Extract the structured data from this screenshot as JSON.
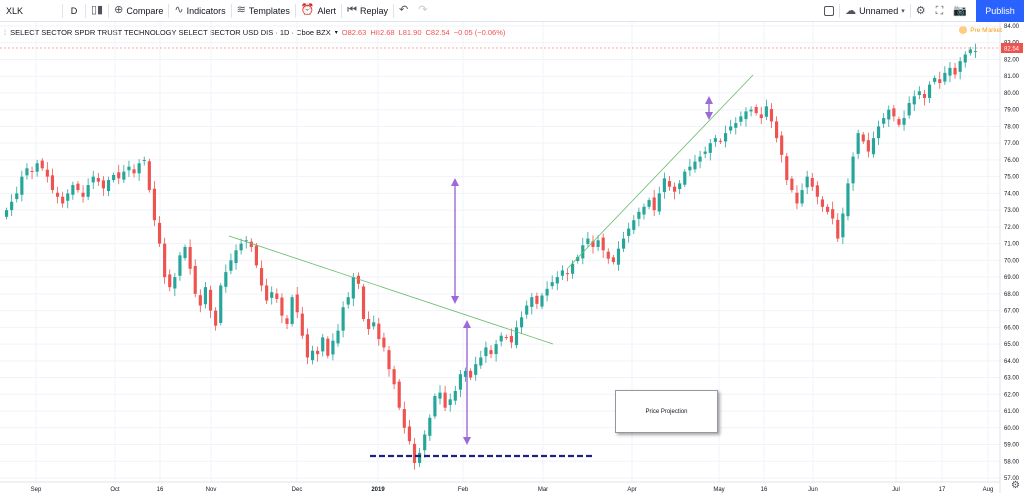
{
  "toolbar": {
    "symbol": "XLK",
    "interval": "D",
    "compare": "Compare",
    "indicators": "Indicators",
    "templates": "Templates",
    "alert": "Alert",
    "replay": "Replay",
    "layout_name": "Unnamed",
    "publish": "Publish"
  },
  "legend": {
    "title": "SELECT SECTOR SPDR TRUST TECHNOLOGY SELECT SECTOR USD DIS · 1D · Cboe BZX",
    "open": "O82.63",
    "high": "H82.68",
    "low": "L81.90",
    "close": "C82.54",
    "change": "−0.05 (−0.06%)"
  },
  "premarket": "Pre Market",
  "last_price_label": "82.54",
  "annotation": "Price Projection",
  "colors": {
    "up": "#26a69a",
    "down": "#ef5350",
    "trend": "#66bb6a",
    "arrow": "#9c6ad8",
    "support": "#1a237e"
  },
  "chart_data": {
    "type": "candlestick",
    "y_ticks": [
      "84.00",
      "83.00",
      "82.00",
      "81.00",
      "80.00",
      "79.00",
      "78.00",
      "77.00",
      "76.00",
      "75.00",
      "74.00",
      "73.00",
      "72.00",
      "71.00",
      "70.00",
      "69.00",
      "68.00",
      "67.00",
      "66.00",
      "65.00",
      "64.00",
      "63.00",
      "62.00",
      "61.00",
      "60.00",
      "59.00",
      "58.00",
      "57.00"
    ],
    "ylim": [
      56.5,
      84.5
    ],
    "x_ticks": [
      "Sep",
      "Oct",
      "16",
      "Nov",
      "Dec",
      "2019",
      "Feb",
      "Mar",
      "Apr",
      "May",
      "16",
      "Jun",
      "Jul",
      "17",
      "Aug"
    ],
    "x_tick_pos": [
      36,
      115,
      160,
      211,
      297,
      378,
      463,
      543,
      632,
      719,
      764,
      813,
      896,
      942,
      988
    ],
    "closes": [
      73,
      73.5,
      74,
      75,
      75.5,
      75.3,
      75.8,
      75.5,
      75,
      74.2,
      73.8,
      73.4,
      74,
      74.5,
      74.2,
      73.8,
      74.5,
      75,
      74.7,
      74.3,
      74.8,
      75.1,
      74.9,
      75.3,
      75.6,
      75.2,
      75.8,
      76,
      74.2,
      72.4,
      71,
      69,
      68.4,
      69,
      70.3,
      70.8,
      69.5,
      68,
      67.3,
      68.4,
      67,
      66.1,
      68.5,
      69.3,
      70,
      70.6,
      71,
      71.2,
      70.8,
      69.7,
      68.5,
      67.6,
      68.1,
      67.7,
      66.7,
      66.2,
      67.8,
      66.9,
      65.5,
      64.2,
      64.6,
      64.4,
      65.4,
      64.3,
      65.2,
      65.8,
      67.2,
      67.8,
      69,
      68.6,
      66.5,
      65.9,
      66.3,
      65.3,
      64.8,
      63.5,
      62.6,
      61.2,
      60,
      59.2,
      57.9,
      58.5,
      59.6,
      60.6,
      61.9,
      62.1,
      61.2,
      61.7,
      62.2,
      63.2,
      63.4,
      63,
      63.8,
      64.2,
      64.8,
      64.4,
      65,
      65.5,
      65.4,
      65.1,
      66,
      66.6,
      67.3,
      67.8,
      67.4,
      67.9,
      68.3,
      68.7,
      69,
      69.4,
      69.2,
      69.8,
      70.2,
      70.9,
      71.3,
      70.8,
      71.2,
      70.6,
      70.1,
      69.9,
      70.7,
      71.3,
      71.9,
      72.4,
      72.9,
      73.2,
      73.6,
      73,
      74,
      74.9,
      74.4,
      74.1,
      74.6,
      75.3,
      75.6,
      75.9,
      76.2,
      76.5,
      77,
      77.3,
      77.1,
      77.6,
      78,
      78.2,
      78.6,
      78.9,
      79,
      78.8,
      78.5,
      79.2,
      78.3,
      77.3,
      76.3,
      74.8,
      74.2,
      73.4,
      74.2,
      75,
      74.4,
      73.8,
      73.2,
      72.9,
      72.5,
      71.3,
      72.8,
      74.6,
      76.2,
      77.6,
      77.1,
      76.5,
      77.3,
      78,
      78.5,
      79,
      78.6,
      78.1,
      78.5,
      79.4,
      79.8,
      80.1,
      79.7,
      80.5,
      80.9,
      80.6,
      81.2,
      81.5,
      81.1,
      81.9,
      82.3,
      82.6,
      82.5
    ]
  }
}
